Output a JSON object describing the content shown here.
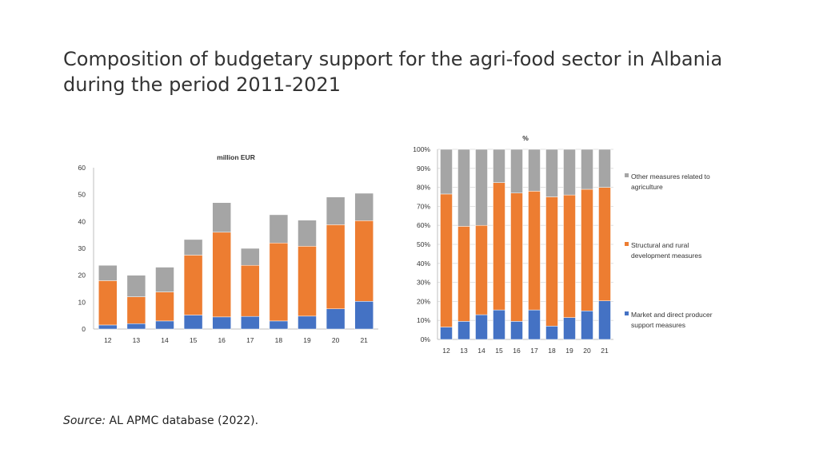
{
  "title": {
    "line1": "Composition of budgetary support for the agri-food sector  in Albania",
    "line2": "during the period 2011-2021"
  },
  "source": {
    "label": "Source:",
    "text": " AL APMC database (2022)."
  },
  "colors": {
    "market": "#4472C4",
    "structural": "#ED7D31",
    "other": "#A5A5A5",
    "axis": "#BFBFBF",
    "grid": "#D9D9D9"
  },
  "chart_data": [
    {
      "type": "bar",
      "stacked": true,
      "title": "million EUR",
      "categories": [
        "12",
        "13",
        "14",
        "15",
        "16",
        "17",
        "18",
        "19",
        "20",
        "21"
      ],
      "ylim": [
        0,
        60
      ],
      "yticks": [
        0,
        10,
        20,
        30,
        40,
        50,
        60
      ],
      "ytick_labels": [
        "0",
        "10",
        "20",
        "30",
        "40",
        "50",
        "60"
      ],
      "grid": false,
      "series": [
        {
          "name": "Market and direct producer support measures",
          "color_key": "market",
          "values": [
            1.5,
            2.0,
            3.0,
            5.2,
            4.5,
            4.7,
            3.0,
            4.8,
            7.5,
            10.3
          ]
        },
        {
          "name": "Structural and rural development measures",
          "color_key": "structural",
          "values": [
            16.5,
            10.0,
            10.8,
            22.3,
            31.5,
            19.0,
            29.0,
            26.0,
            31.3,
            30.0
          ]
        },
        {
          "name": "Other measures related to agriculture",
          "color_key": "other",
          "values": [
            5.7,
            8.0,
            9.2,
            5.8,
            11.0,
            6.3,
            10.5,
            9.7,
            10.3,
            10.2
          ]
        }
      ]
    },
    {
      "type": "bar",
      "stacked": true,
      "title": "%",
      "categories": [
        "12",
        "13",
        "14",
        "15",
        "16",
        "17",
        "18",
        "19",
        "20",
        "21"
      ],
      "ylim": [
        0,
        100
      ],
      "yticks": [
        0,
        10,
        20,
        30,
        40,
        50,
        60,
        70,
        80,
        90,
        100
      ],
      "ytick_labels": [
        "0%",
        "10%",
        "20%",
        "30%",
        "40%",
        "50%",
        "60%",
        "70%",
        "80%",
        "90%",
        "100%"
      ],
      "grid": true,
      "legend_position": "right",
      "series": [
        {
          "name": "Market and direct producer support measures",
          "color_key": "market",
          "values": [
            6.5,
            9.5,
            13,
            15.5,
            9.5,
            15.5,
            7,
            11.5,
            15,
            20.3
          ]
        },
        {
          "name": "Structural and rural development measures",
          "color_key": "structural",
          "values": [
            70,
            50,
            47,
            67,
            67.5,
            62.5,
            68,
            64.5,
            64,
            59.7
          ]
        },
        {
          "name": "Other measures related to agriculture",
          "color_key": "other",
          "values": [
            23.5,
            40.5,
            40,
            17.5,
            23,
            22,
            25,
            24,
            21,
            20
          ]
        }
      ]
    }
  ],
  "legend": [
    {
      "color_key": "other",
      "lines": [
        "Other measures related to",
        "agriculture"
      ]
    },
    {
      "color_key": "structural",
      "lines": [
        "Structural and rural",
        "development measures"
      ]
    },
    {
      "color_key": "market",
      "lines": [
        "Market and direct producer",
        "support measures"
      ]
    }
  ]
}
